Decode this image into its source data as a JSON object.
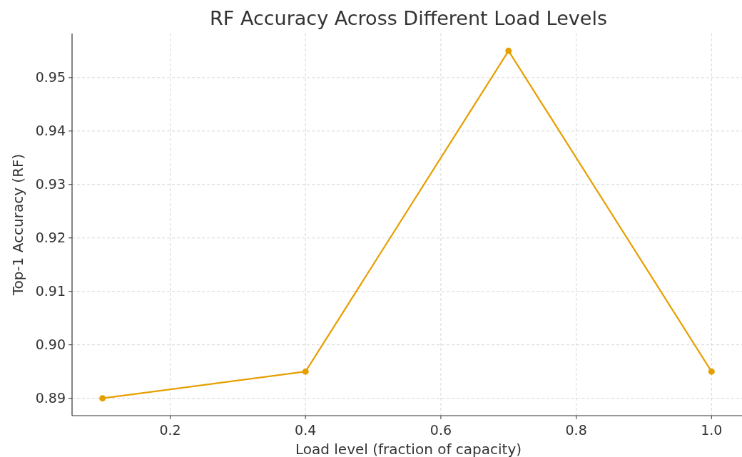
{
  "chart_data": {
    "type": "line",
    "title": "RF Accuracy Across Different Load Levels",
    "xlabel": "Load level (fraction of capacity)",
    "ylabel": "Top-1 Accuracy (RF)",
    "x": [
      0.1,
      0.4,
      0.7,
      1.0
    ],
    "series": [
      {
        "color": "#e69f00",
        "values": [
          0.89,
          0.895,
          0.955,
          0.895
        ]
      }
    ],
    "xlim": [
      0.055,
      1.045
    ],
    "xticks": [
      {
        "value": 0.2,
        "label": "0.2"
      },
      {
        "value": 0.4,
        "label": "0.4"
      },
      {
        "value": 0.6,
        "label": "0.6"
      },
      {
        "value": 0.8,
        "label": "0.8"
      },
      {
        "value": 1.0,
        "label": "1.0"
      }
    ],
    "ylim": [
      0.88675,
      0.95825
    ],
    "yticks": [
      {
        "value": 0.89,
        "label": "0.89"
      },
      {
        "value": 0.9,
        "label": "0.90"
      },
      {
        "value": 0.91,
        "label": "0.91"
      },
      {
        "value": 0.92,
        "label": "0.92"
      },
      {
        "value": 0.93,
        "label": "0.93"
      },
      {
        "value": 0.94,
        "label": "0.94"
      },
      {
        "value": 0.95,
        "label": "0.95"
      }
    ],
    "grid": true,
    "marker": "circle",
    "line_style": "solid"
  }
}
